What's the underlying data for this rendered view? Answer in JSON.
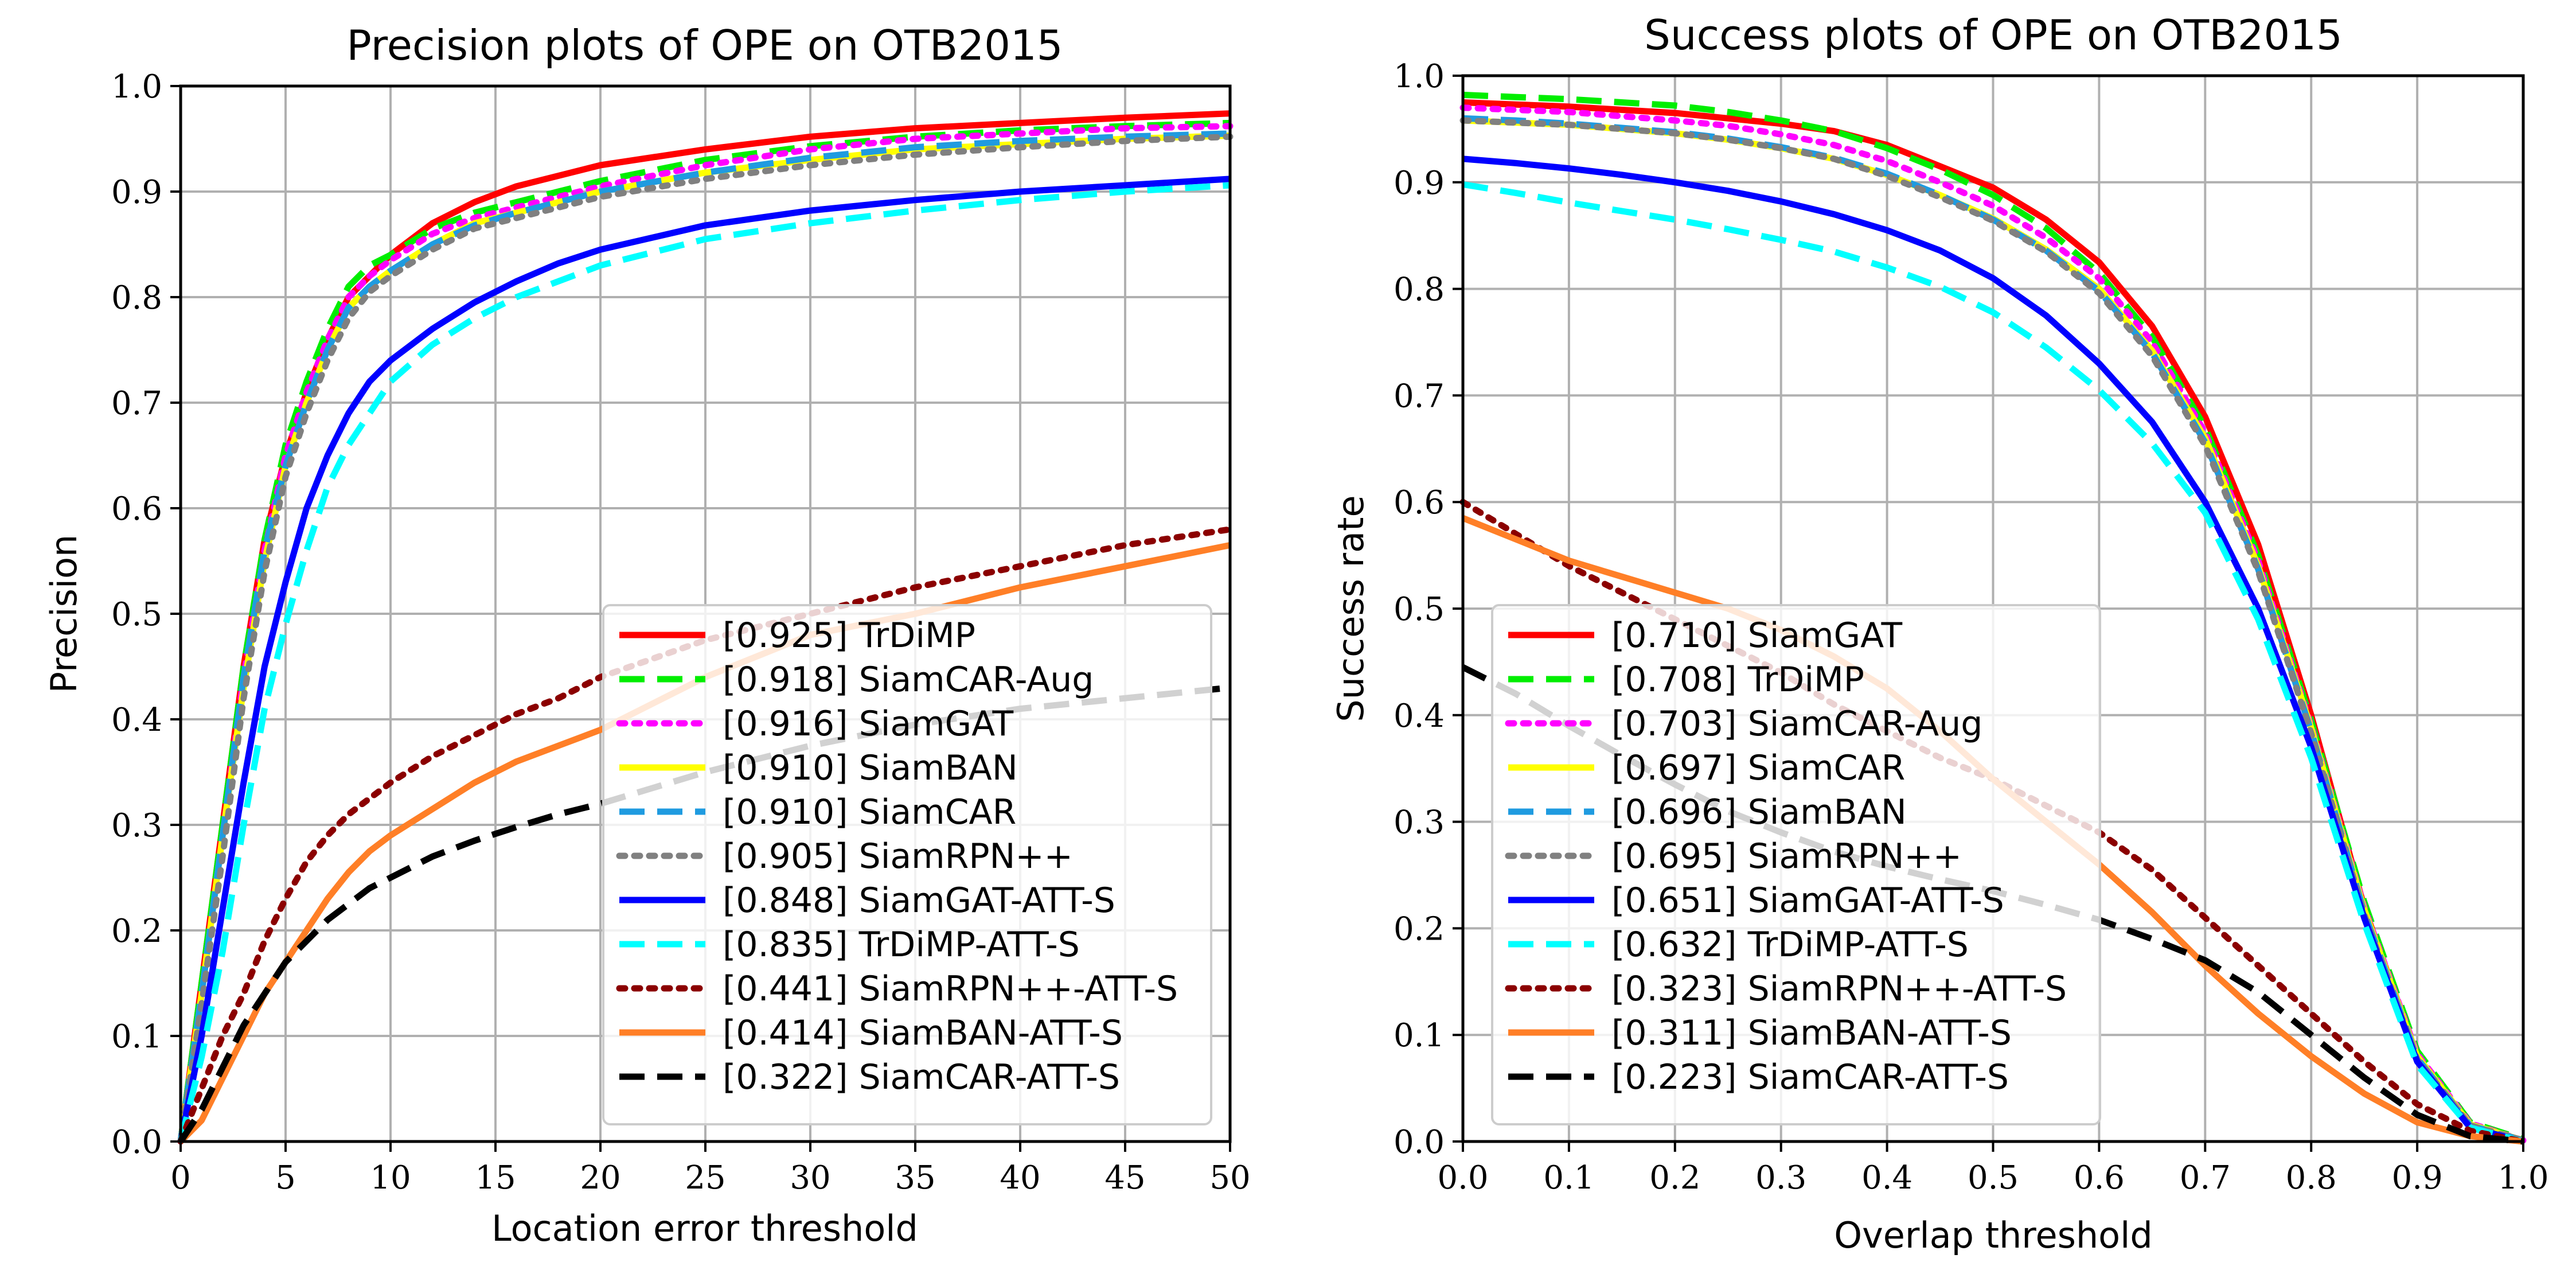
{
  "figure": {
    "background": "#ffffff"
  },
  "chart_data": [
    {
      "type": "line",
      "title": "Precision plots of OPE on OTB2015",
      "xlabel": "Location error threshold",
      "ylabel": "Precision",
      "xlim": [
        0,
        50
      ],
      "ylim": [
        0,
        1
      ],
      "xticks": [
        0,
        5,
        10,
        15,
        20,
        25,
        30,
        35,
        40,
        45,
        50
      ],
      "xtick_labels": [
        "0",
        "5",
        "10",
        "15",
        "20",
        "25",
        "30",
        "35",
        "40",
        "45",
        "50"
      ],
      "yticks": [
        0,
        0.1,
        0.2,
        0.3,
        0.4,
        0.5,
        0.6,
        0.7,
        0.8,
        0.9,
        1.0
      ],
      "ytick_labels": [
        "0.0",
        "0.1",
        "0.2",
        "0.3",
        "0.4",
        "0.5",
        "0.6",
        "0.7",
        "0.8",
        "0.9",
        "1.0"
      ],
      "grid": true,
      "legend_position": "lower-right",
      "x": [
        0,
        1,
        2,
        3,
        4,
        5,
        6,
        7,
        8,
        9,
        10,
        12,
        14,
        16,
        18,
        20,
        25,
        30,
        35,
        40,
        45,
        50
      ],
      "series": [
        {
          "name": "[0.925] TrDiMP",
          "color": "#ff0000",
          "dash": "solid",
          "values": [
            0,
            0.15,
            0.3,
            0.45,
            0.57,
            0.65,
            0.71,
            0.76,
            0.8,
            0.82,
            0.84,
            0.87,
            0.89,
            0.905,
            0.915,
            0.925,
            0.94,
            0.952,
            0.96,
            0.965,
            0.97,
            0.974
          ]
        },
        {
          "name": "[0.918] SiamCAR-Aug",
          "color": "#00ee00",
          "dash": "dashed",
          "values": [
            0,
            0.15,
            0.3,
            0.45,
            0.57,
            0.66,
            0.72,
            0.77,
            0.81,
            0.83,
            0.84,
            0.865,
            0.88,
            0.89,
            0.9,
            0.91,
            0.93,
            0.943,
            0.952,
            0.958,
            0.962,
            0.965
          ]
        },
        {
          "name": "[0.916] SiamGAT",
          "color": "#ff00ff",
          "dash": "dotted",
          "values": [
            0,
            0.14,
            0.29,
            0.44,
            0.56,
            0.65,
            0.71,
            0.76,
            0.8,
            0.82,
            0.835,
            0.86,
            0.875,
            0.885,
            0.895,
            0.905,
            0.925,
            0.94,
            0.95,
            0.955,
            0.96,
            0.962
          ]
        },
        {
          "name": "[0.910] SiamBAN",
          "color": "#ffff00",
          "dash": "solid",
          "values": [
            0,
            0.14,
            0.29,
            0.43,
            0.55,
            0.64,
            0.7,
            0.75,
            0.79,
            0.81,
            0.825,
            0.85,
            0.87,
            0.88,
            0.89,
            0.9,
            0.918,
            0.93,
            0.94,
            0.945,
            0.95,
            0.953
          ]
        },
        {
          "name": "[0.910] SiamCAR",
          "color": "#1f9be0",
          "dash": "dashed",
          "values": [
            0,
            0.14,
            0.29,
            0.44,
            0.56,
            0.64,
            0.7,
            0.75,
            0.79,
            0.81,
            0.825,
            0.85,
            0.868,
            0.88,
            0.89,
            0.9,
            0.918,
            0.932,
            0.942,
            0.948,
            0.952,
            0.955
          ]
        },
        {
          "name": "[0.905] SiamRPN++",
          "color": "#808080",
          "dash": "dotted",
          "values": [
            0,
            0.13,
            0.27,
            0.42,
            0.54,
            0.63,
            0.69,
            0.74,
            0.78,
            0.805,
            0.82,
            0.845,
            0.865,
            0.875,
            0.885,
            0.895,
            0.912,
            0.925,
            0.935,
            0.942,
            0.948,
            0.952
          ]
        },
        {
          "name": "[0.848] SiamGAT-ATT-S",
          "color": "#0000ff",
          "dash": "solid",
          "values": [
            0,
            0.1,
            0.22,
            0.34,
            0.45,
            0.53,
            0.6,
            0.65,
            0.69,
            0.72,
            0.74,
            0.77,
            0.795,
            0.815,
            0.832,
            0.845,
            0.868,
            0.882,
            0.892,
            0.9,
            0.906,
            0.912
          ]
        },
        {
          "name": "[0.835] TrDiMP-ATT-S",
          "color": "#00ffff",
          "dash": "dashed",
          "values": [
            0,
            0.08,
            0.18,
            0.3,
            0.41,
            0.49,
            0.56,
            0.62,
            0.66,
            0.69,
            0.72,
            0.755,
            0.78,
            0.8,
            0.815,
            0.83,
            0.855,
            0.87,
            0.882,
            0.892,
            0.9,
            0.906
          ]
        },
        {
          "name": "[0.441] SiamRPN++-ATT-S",
          "color": "#8b0000",
          "dash": "dotted",
          "values": [
            0,
            0.05,
            0.1,
            0.14,
            0.19,
            0.23,
            0.265,
            0.29,
            0.31,
            0.325,
            0.34,
            0.365,
            0.385,
            0.405,
            0.42,
            0.44,
            0.475,
            0.5,
            0.525,
            0.545,
            0.565,
            0.58
          ]
        },
        {
          "name": "[0.414] SiamBAN-ATT-S",
          "color": "#ff7f27",
          "dash": "solid",
          "values": [
            0,
            0.02,
            0.06,
            0.1,
            0.14,
            0.17,
            0.2,
            0.23,
            0.255,
            0.275,
            0.29,
            0.315,
            0.34,
            0.36,
            0.375,
            0.39,
            0.44,
            0.48,
            0.5,
            0.525,
            0.545,
            0.565
          ]
        },
        {
          "name": "[0.322] SiamCAR-ATT-S",
          "color": "#000000",
          "dash": "dashed",
          "values": [
            0,
            0.03,
            0.07,
            0.11,
            0.14,
            0.17,
            0.19,
            0.21,
            0.225,
            0.24,
            0.25,
            0.27,
            0.285,
            0.298,
            0.31,
            0.32,
            0.35,
            0.375,
            0.395,
            0.41,
            0.42,
            0.43
          ]
        }
      ]
    },
    {
      "type": "line",
      "title": "Success plots of OPE on OTB2015",
      "xlabel": "Overlap threshold",
      "ylabel": "Success rate",
      "xlim": [
        0,
        1
      ],
      "ylim": [
        0,
        1
      ],
      "xticks": [
        0,
        0.1,
        0.2,
        0.3,
        0.4,
        0.5,
        0.6,
        0.7,
        0.8,
        0.9,
        1.0
      ],
      "xtick_labels": [
        "0.0",
        "0.1",
        "0.2",
        "0.3",
        "0.4",
        "0.5",
        "0.6",
        "0.7",
        "0.8",
        "0.9",
        "1.0"
      ],
      "yticks": [
        0,
        0.1,
        0.2,
        0.3,
        0.4,
        0.5,
        0.6,
        0.7,
        0.8,
        0.9,
        1.0
      ],
      "ytick_labels": [
        "0.0",
        "0.1",
        "0.2",
        "0.3",
        "0.4",
        "0.5",
        "0.6",
        "0.7",
        "0.8",
        "0.9",
        "1.0"
      ],
      "grid": true,
      "legend_position": "lower-left",
      "x": [
        0,
        0.05,
        0.1,
        0.15,
        0.2,
        0.25,
        0.3,
        0.35,
        0.4,
        0.45,
        0.5,
        0.55,
        0.6,
        0.65,
        0.7,
        0.75,
        0.8,
        0.85,
        0.9,
        0.95,
        1.0
      ],
      "series": [
        {
          "name": "[0.710] SiamGAT",
          "color": "#ff0000",
          "dash": "solid",
          "values": [
            0.975,
            0.973,
            0.971,
            0.968,
            0.965,
            0.96,
            0.955,
            0.948,
            0.935,
            0.915,
            0.895,
            0.865,
            0.825,
            0.765,
            0.68,
            0.56,
            0.4,
            0.22,
            0.08,
            0.015,
            0
          ]
        },
        {
          "name": "[0.708] TrDiMP",
          "color": "#00ee00",
          "dash": "dashed",
          "values": [
            0.982,
            0.98,
            0.978,
            0.975,
            0.972,
            0.966,
            0.958,
            0.948,
            0.932,
            0.912,
            0.888,
            0.857,
            0.815,
            0.755,
            0.67,
            0.55,
            0.395,
            0.225,
            0.085,
            0.018,
            0.002
          ]
        },
        {
          "name": "[0.703] SiamCAR-Aug",
          "color": "#ff00ff",
          "dash": "dotted",
          "values": [
            0.97,
            0.968,
            0.966,
            0.962,
            0.958,
            0.953,
            0.945,
            0.935,
            0.92,
            0.9,
            0.878,
            0.848,
            0.81,
            0.75,
            0.665,
            0.545,
            0.39,
            0.22,
            0.082,
            0.017,
            0.001
          ]
        },
        {
          "name": "[0.697] SiamCAR",
          "color": "#ffff00",
          "dash": "solid",
          "values": [
            0.958,
            0.956,
            0.954,
            0.95,
            0.946,
            0.94,
            0.932,
            0.922,
            0.907,
            0.888,
            0.866,
            0.837,
            0.8,
            0.742,
            0.66,
            0.54,
            0.388,
            0.218,
            0.08,
            0.016,
            0.001
          ]
        },
        {
          "name": "[0.696] SiamBAN",
          "color": "#1f9be0",
          "dash": "dashed",
          "values": [
            0.96,
            0.958,
            0.955,
            0.951,
            0.947,
            0.941,
            0.933,
            0.923,
            0.908,
            0.888,
            0.865,
            0.836,
            0.798,
            0.74,
            0.656,
            0.537,
            0.385,
            0.215,
            0.078,
            0.015,
            0.001
          ]
        },
        {
          "name": "[0.695] SiamRPN++",
          "color": "#808080",
          "dash": "dotted",
          "values": [
            0.958,
            0.956,
            0.954,
            0.95,
            0.946,
            0.94,
            0.932,
            0.922,
            0.906,
            0.886,
            0.864,
            0.835,
            0.796,
            0.737,
            0.653,
            0.535,
            0.383,
            0.213,
            0.077,
            0.015,
            0.001
          ]
        },
        {
          "name": "[0.651] SiamGAT-ATT-S",
          "color": "#0000ff",
          "dash": "solid",
          "values": [
            0.922,
            0.918,
            0.913,
            0.907,
            0.9,
            0.892,
            0.882,
            0.87,
            0.855,
            0.836,
            0.81,
            0.775,
            0.73,
            0.675,
            0.6,
            0.5,
            0.37,
            0.21,
            0.075,
            0.013,
            0
          ]
        },
        {
          "name": "[0.632] TrDiMP-ATT-S",
          "color": "#00ffff",
          "dash": "dashed",
          "values": [
            0.898,
            0.89,
            0.881,
            0.873,
            0.865,
            0.856,
            0.846,
            0.835,
            0.82,
            0.802,
            0.778,
            0.745,
            0.705,
            0.655,
            0.59,
            0.49,
            0.36,
            0.205,
            0.072,
            0.013,
            0
          ]
        },
        {
          "name": "[0.323] SiamRPN++-ATT-S",
          "color": "#8b0000",
          "dash": "dotted",
          "values": [
            0.6,
            0.57,
            0.54,
            0.515,
            0.49,
            0.465,
            0.44,
            0.41,
            0.385,
            0.36,
            0.34,
            0.315,
            0.29,
            0.255,
            0.21,
            0.165,
            0.12,
            0.075,
            0.035,
            0.01,
            0
          ]
        },
        {
          "name": "[0.311] SiamBAN-ATT-S",
          "color": "#ff7f27",
          "dash": "solid",
          "values": [
            0.585,
            0.565,
            0.545,
            0.53,
            0.515,
            0.5,
            0.48,
            0.455,
            0.425,
            0.385,
            0.34,
            0.3,
            0.26,
            0.215,
            0.165,
            0.12,
            0.08,
            0.045,
            0.018,
            0.005,
            0
          ]
        },
        {
          "name": "[0.223] SiamCAR-ATT-S",
          "color": "#000000",
          "dash": "dashed",
          "values": [
            0.445,
            0.42,
            0.39,
            0.362,
            0.335,
            0.31,
            0.29,
            0.272,
            0.258,
            0.246,
            0.235,
            0.222,
            0.208,
            0.19,
            0.17,
            0.14,
            0.1,
            0.06,
            0.025,
            0.005,
            0
          ]
        }
      ]
    }
  ]
}
